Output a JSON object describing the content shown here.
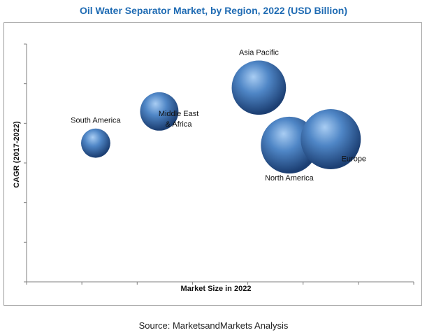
{
  "colors": {
    "title": "#1f6bb3",
    "axis": "#7f7f7f",
    "bubble_light": "#a9cdf3",
    "bubble_mid": "#4f86c6",
    "bubble_dark": "#1c3f73",
    "label": "#111111"
  },
  "source": "Source: MarketsandMarkets Analysis",
  "chart_data": {
    "type": "scatter",
    "subtype": "bubble",
    "title": "Oil Water Separator Market, by Region, 2022 (USD Billion)",
    "xlabel": "Market Size in 2022",
    "ylabel": "CAGR (2017-2022)",
    "x_tick_labels_shown": false,
    "y_tick_labels_shown": false,
    "x_tick_count": 7,
    "y_tick_count": 6,
    "xlim": [
      0,
      7
    ],
    "ylim": [
      0,
      6
    ],
    "grid": false,
    "legend": "none",
    "series": [
      {
        "points": [
          {
            "label": "South America",
            "x": 1.25,
            "y": 3.5,
            "size": 0.9,
            "label_position": "above"
          },
          {
            "label": "Middle East\n& Africa",
            "x": 2.4,
            "y": 4.3,
            "size": 1.55,
            "label_position": "below-right"
          },
          {
            "label": "Asia Pacific",
            "x": 4.2,
            "y": 4.9,
            "size": 3.1,
            "label_position": "above"
          },
          {
            "label": "North America",
            "x": 4.75,
            "y": 3.45,
            "size": 3.4,
            "label_position": "below"
          },
          {
            "label": "Europe",
            "x": 5.5,
            "y": 3.6,
            "size": 3.8,
            "label_position": "below-right"
          }
        ]
      }
    ]
  }
}
